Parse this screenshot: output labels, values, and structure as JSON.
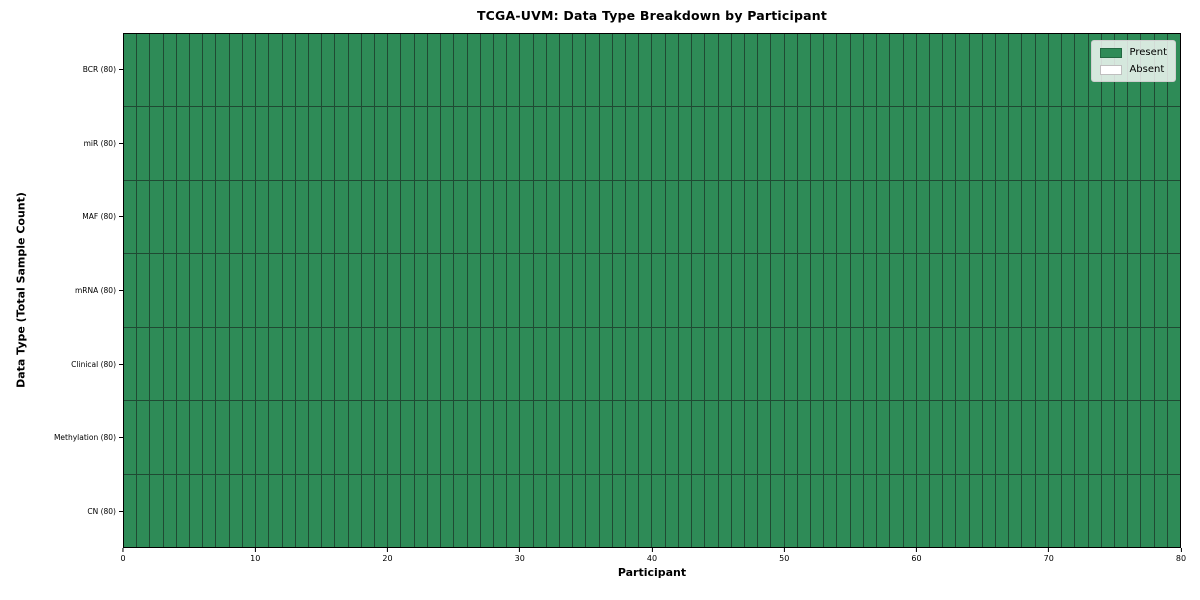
{
  "chart_data": {
    "type": "heatmap",
    "title": "TCGA-UVM: Data Type Breakdown by Participant",
    "xlabel": "Participant",
    "ylabel": "Data Type (Total Sample Count)",
    "xlim": [
      0,
      80
    ],
    "x_ticks": [
      0,
      10,
      20,
      30,
      40,
      50,
      60,
      70,
      80
    ],
    "participants": 80,
    "grid_on": false,
    "rows": [
      {
        "label": "BCR (80)",
        "data_type": "BCR",
        "total_samples": 80,
        "present_count": 80,
        "absent_count": 0
      },
      {
        "label": "miR (80)",
        "data_type": "miR",
        "total_samples": 80,
        "present_count": 80,
        "absent_count": 0
      },
      {
        "label": "MAF (80)",
        "data_type": "MAF",
        "total_samples": 80,
        "present_count": 80,
        "absent_count": 0
      },
      {
        "label": "mRNA (80)",
        "data_type": "mRNA",
        "total_samples": 80,
        "present_count": 80,
        "absent_count": 0
      },
      {
        "label": "Clinical (80)",
        "data_type": "Clinical",
        "total_samples": 80,
        "present_count": 80,
        "absent_count": 0
      },
      {
        "label": "Methylation (80)",
        "data_type": "Methylation",
        "total_samples": 80,
        "present_count": 80,
        "absent_count": 0
      },
      {
        "label": "CN (80)",
        "data_type": "CN",
        "total_samples": 80,
        "present_count": 80,
        "absent_count": 0
      }
    ],
    "legend": {
      "position": "upper right",
      "items": [
        {
          "label": "Present",
          "color": "#2e8b57"
        },
        {
          "label": "Absent",
          "color": "#ffffff"
        }
      ]
    },
    "colors": {
      "present": "#2e8b57",
      "absent": "#ffffff",
      "grid_line": "#1f4a33",
      "spine": "#000000"
    }
  }
}
